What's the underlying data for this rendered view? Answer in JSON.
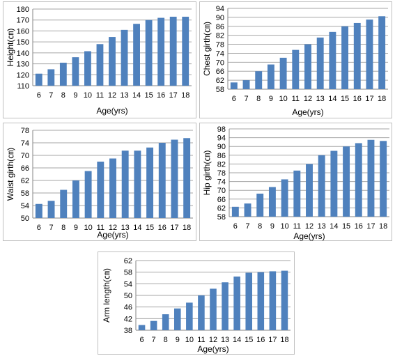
{
  "chart_data": [
    {
      "type": "bar",
      "categories": [
        "6",
        "7",
        "8",
        "9",
        "10",
        "11",
        "12",
        "13",
        "14",
        "15",
        "16",
        "17",
        "18"
      ],
      "values": [
        121,
        125,
        131,
        136,
        141.5,
        148,
        154.5,
        161,
        166.5,
        170,
        172,
        173,
        173
      ],
      "title": "",
      "xlabel": "Age(yrs)",
      "ylabel": "Height(㎝)",
      "ylim": [
        110,
        180
      ],
      "yticks": [
        110,
        120,
        130,
        140,
        150,
        160,
        170,
        180
      ],
      "grid": true,
      "color": "#4f81bd"
    },
    {
      "type": "bar",
      "categories": [
        "6",
        "7",
        "8",
        "9",
        "10",
        "11",
        "12",
        "13",
        "14",
        "15",
        "16",
        "17",
        "18"
      ],
      "values": [
        61,
        62,
        66,
        69,
        72,
        75.5,
        78,
        81,
        83.5,
        86,
        87.5,
        89,
        90.5
      ],
      "title": "",
      "xlabel": "Age(yrs)",
      "ylabel": "Chest girth(㎝)",
      "ylim": [
        58,
        94
      ],
      "yticks": [
        58,
        62,
        66,
        70,
        74,
        78,
        82,
        86,
        90,
        94
      ],
      "grid": true,
      "color": "#4f81bd"
    },
    {
      "type": "bar",
      "categories": [
        "6",
        "7",
        "8",
        "9",
        "10",
        "11",
        "12",
        "13",
        "14",
        "15",
        "16",
        "17",
        "18"
      ],
      "values": [
        54.5,
        55.5,
        59,
        62,
        65,
        68,
        69,
        71.5,
        71.5,
        72.5,
        74,
        75,
        75.5
      ],
      "title": "",
      "xlabel": "Age(yrs)",
      "ylabel": "Waist girth(㎝)",
      "ylim": [
        50,
        78
      ],
      "yticks": [
        50,
        54,
        58,
        62,
        66,
        70,
        74,
        78
      ],
      "grid": true,
      "color": "#4f81bd"
    },
    {
      "type": "bar",
      "categories": [
        "6",
        "7",
        "8",
        "9",
        "10",
        "11",
        "12",
        "13",
        "14",
        "15",
        "16",
        "17",
        "18"
      ],
      "values": [
        62.5,
        64,
        68.5,
        71.5,
        75,
        79,
        82,
        86,
        88,
        90,
        91.5,
        93,
        92.5
      ],
      "title": "",
      "xlabel": "Age(yrs)",
      "ylabel": "Hip girth(㎝)",
      "ylim": [
        58,
        98
      ],
      "yticks": [
        58,
        62,
        66,
        70,
        74,
        78,
        82,
        86,
        90,
        94,
        98
      ],
      "grid": true,
      "color": "#4f81bd"
    },
    {
      "type": "bar",
      "categories": [
        "6",
        "7",
        "8",
        "9",
        "10",
        "11",
        "12",
        "13",
        "14",
        "15",
        "16",
        "17",
        "18"
      ],
      "values": [
        39.8,
        41.2,
        43.5,
        45.5,
        47.5,
        50,
        52.3,
        54.5,
        56.5,
        57.8,
        58,
        58.3,
        58.5
      ],
      "title": "",
      "xlabel": "Age(yrs)",
      "ylabel": "Arm length(㎝)",
      "ylim": [
        38,
        62
      ],
      "yticks": [
        38,
        42,
        46,
        50,
        54,
        58,
        62
      ],
      "grid": true,
      "color": "#4f81bd"
    }
  ]
}
